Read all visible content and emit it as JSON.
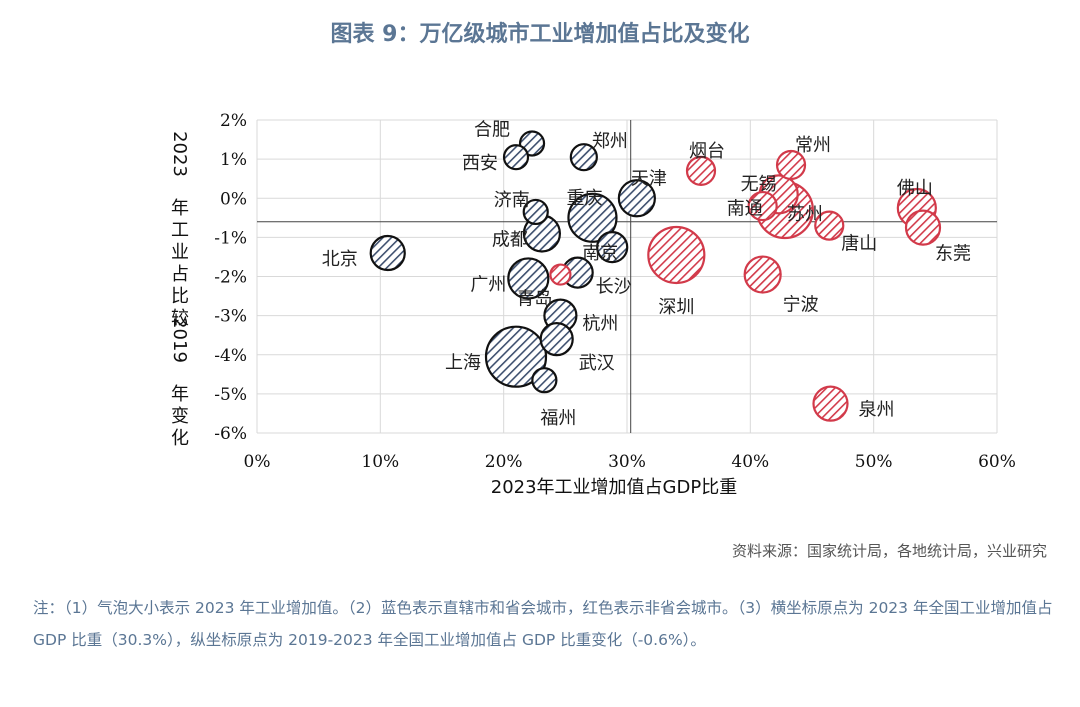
{
  "title": "图表 9：万亿级城市工业增加值占比及变化",
  "source": "资料来源：国家统计局，各地统计局，兴业研究",
  "note": {
    "prefix": "注：",
    "text": "（1）气泡大小表示 2023 年工业增加值。（2）蓝色表示直辖市和省会城市，红色表示非省会城市。（3）横坐标原点为 2023 年全国工业增加值占 GDP 比重（30.3%），纵坐标原点为 2019-2023 年全国工业增加值占 GDP 比重变化（-0.6%）。"
  },
  "colors": {
    "blue": "#3d4f6e",
    "red": "#d23a4a",
    "title": "#5b7694"
  },
  "chart_data": {
    "type": "scatter",
    "xlabel": "2023年工业增加值占GDP比重",
    "ylabel": "2023年工业占比较2019年变化",
    "xlim": [
      0,
      60
    ],
    "ylim": [
      -6,
      2
    ],
    "x_ticks": [
      0,
      10,
      20,
      30,
      40,
      50,
      60
    ],
    "y_ticks": [
      2,
      1,
      0,
      -1,
      -2,
      -3,
      -4,
      -5,
      -6
    ],
    "x_tick_labels": [
      "0%",
      "10%",
      "20%",
      "30%",
      "40%",
      "50%",
      "60%"
    ],
    "y_tick_labels": [
      "2%",
      "1%",
      "0%",
      "-1%",
      "-2%",
      "-3%",
      "-4%",
      "-5%",
      "-6%"
    ],
    "origin": {
      "x": 30.3,
      "y": -0.6
    },
    "grid": true,
    "bubble_size_meaning": "2023年工业增加值",
    "points": [
      {
        "name": "合肥",
        "x": 22.3,
        "y": 1.4,
        "size": 1.0,
        "color": "blue"
      },
      {
        "name": "郑州",
        "x": 26.5,
        "y": 1.05,
        "size": 1.1,
        "color": "blue"
      },
      {
        "name": "西安",
        "x": 21.0,
        "y": 1.05,
        "size": 1.0,
        "color": "blue"
      },
      {
        "name": "天津",
        "x": 30.8,
        "y": 0.0,
        "size": 1.6,
        "color": "blue"
      },
      {
        "name": "济南",
        "x": 22.6,
        "y": -0.35,
        "size": 1.0,
        "color": "blue"
      },
      {
        "name": "重庆",
        "x": 27.2,
        "y": -0.5,
        "size": 2.2,
        "color": "blue"
      },
      {
        "name": "成都",
        "x": 23.1,
        "y": -0.9,
        "size": 1.6,
        "color": "blue"
      },
      {
        "name": "南京",
        "x": 28.8,
        "y": -1.25,
        "size": 1.3,
        "color": "blue"
      },
      {
        "name": "北京",
        "x": 10.6,
        "y": -1.4,
        "size": 1.5,
        "color": "blue"
      },
      {
        "name": "广州",
        "x": 22.0,
        "y": -2.05,
        "size": 1.8,
        "color": "blue"
      },
      {
        "name": "长沙",
        "x": 26.0,
        "y": -1.9,
        "size": 1.3,
        "color": "blue"
      },
      {
        "name": "青岛",
        "x": 24.6,
        "y": -1.95,
        "size": 0.8,
        "color": "red"
      },
      {
        "name": "杭州",
        "x": 24.6,
        "y": -3.0,
        "size": 1.4,
        "color": "blue"
      },
      {
        "name": "武汉",
        "x": 24.3,
        "y": -3.6,
        "size": 1.4,
        "color": "blue"
      },
      {
        "name": "上海",
        "x": 21.0,
        "y": -4.05,
        "size": 2.8,
        "color": "blue"
      },
      {
        "name": "福州",
        "x": 23.3,
        "y": -4.65,
        "size": 1.0,
        "color": "blue"
      },
      {
        "name": "烟台",
        "x": 36.0,
        "y": 0.7,
        "size": 1.2,
        "color": "red"
      },
      {
        "name": "常州",
        "x": 43.3,
        "y": 0.85,
        "size": 1.2,
        "color": "red"
      },
      {
        "name": "无锡",
        "x": 41.0,
        "y": -0.2,
        "size": 1.2,
        "color": "red"
      },
      {
        "name": "苏州",
        "x": 42.8,
        "y": -0.3,
        "size": 2.6,
        "color": "red"
      },
      {
        "name": "南通",
        "x": 42.3,
        "y": 0.1,
        "size": 1.7,
        "color": "red"
      },
      {
        "name": "唐山",
        "x": 46.4,
        "y": -0.7,
        "size": 1.2,
        "color": "red"
      },
      {
        "name": "佛山",
        "x": 53.5,
        "y": -0.25,
        "size": 1.7,
        "color": "red"
      },
      {
        "name": "东莞",
        "x": 54.0,
        "y": -0.75,
        "size": 1.5,
        "color": "red"
      },
      {
        "name": "深圳",
        "x": 34.0,
        "y": -1.45,
        "size": 2.6,
        "color": "red"
      },
      {
        "name": "宁波",
        "x": 41.0,
        "y": -1.95,
        "size": 1.6,
        "color": "red"
      },
      {
        "name": "泉州",
        "x": 46.5,
        "y": -5.25,
        "size": 1.5,
        "color": "red"
      }
    ]
  }
}
